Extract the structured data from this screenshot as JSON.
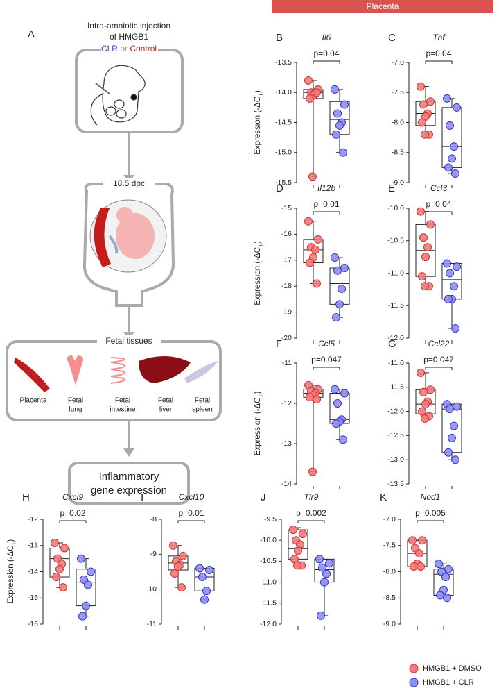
{
  "figure": {
    "banner": "Placenta",
    "panel_a": {
      "label": "A",
      "injection": [
        "Intra-amniotic injection",
        "of HMGB1"
      ],
      "treatment": {
        "clr": "CLR",
        "or": "or",
        "control": "Control"
      },
      "timepoint": "18.5 dpc",
      "tissues_title": "Fetal tissues",
      "tissues": [
        [
          "Placenta"
        ],
        [
          "Fetal",
          "lung"
        ],
        [
          "Fetal",
          "intestine"
        ],
        [
          "Fetal",
          "liver"
        ],
        [
          "Fetal",
          "spleen"
        ]
      ],
      "readout": [
        "Inflammatory",
        "gene expression"
      ]
    }
  },
  "legend": [
    {
      "name": "HMGB1 + DMSO",
      "color": "#f07b7b"
    },
    {
      "name": "HMGB1 + CLR",
      "color": "#8f8ff2"
    }
  ],
  "chart_data": [
    {
      "type": "box",
      "panel": "B",
      "title": "Il6",
      "annotation": "p=0.04",
      "ylabel": [
        "Expression (-ΔC",
        "T",
        ")"
      ],
      "ylim": [
        -15.5,
        -13.5
      ],
      "yticks": [
        -13.5,
        {
          "value": -14,
          "label": "-14.0"
        },
        -14.5,
        {
          "value": -15,
          "label": "-15.0"
        },
        -15.5
      ],
      "series": [
        {
          "values": [
            -13.8,
            -13.95,
            -14.0,
            -14.0,
            -14.05,
            -14.1,
            -14.0,
            -15.4
          ],
          "box": {
            "min": -15.4,
            "q1": -14.1,
            "median": -14.0,
            "q3": -13.95,
            "max": -13.8
          }
        },
        {
          "values": [
            -13.95,
            -14.2,
            -14.35,
            -14.5,
            -14.55,
            -14.7,
            -15.0
          ],
          "box": {
            "min": -15.0,
            "q1": -14.7,
            "median": -14.45,
            "q3": -14.15,
            "max": -13.95
          }
        }
      ]
    },
    {
      "type": "box",
      "panel": "C",
      "title": "Tnf",
      "annotation": "p=0.04",
      "ylim": [
        -9,
        -7
      ],
      "yticks": [
        {
          "value": -7,
          "label": "-7.0"
        },
        -7.5,
        {
          "value": -8,
          "label": "-8.0"
        },
        -8.5,
        {
          "value": -9,
          "label": "-9.0"
        }
      ],
      "series": [
        {
          "values": [
            -7.4,
            -7.65,
            -7.7,
            -7.85,
            -7.9,
            -8.0,
            -8.2,
            -8.2
          ],
          "box": {
            "min": -8.2,
            "q1": -8.05,
            "median": -7.85,
            "q3": -7.65,
            "max": -7.4
          }
        },
        {
          "values": [
            -7.6,
            -7.75,
            -8.05,
            -8.4,
            -8.6,
            -8.75,
            -8.85
          ],
          "box": {
            "min": -8.85,
            "q1": -8.75,
            "median": -8.4,
            "q3": -7.75,
            "max": -7.6
          }
        }
      ]
    },
    {
      "type": "box",
      "panel": "D",
      "title": "Il12b",
      "annotation": "p=0.01",
      "ylabel": [
        "Expression (-ΔC",
        "T",
        ")"
      ],
      "ylim": [
        -20,
        -15
      ],
      "yticks": [
        -15,
        -16,
        -17,
        -18,
        -19,
        -20
      ],
      "series": [
        {
          "values": [
            -15.5,
            -16.2,
            -16.5,
            -16.6,
            -16.9,
            -17.1,
            -17.9
          ],
          "box": {
            "min": -17.9,
            "q1": -17.1,
            "median": -16.6,
            "q3": -16.2,
            "max": -15.5
          }
        },
        {
          "values": [
            -16.9,
            -17.3,
            -17.4,
            -18.1,
            -18.7,
            -19.2
          ],
          "box": {
            "min": -19.2,
            "q1": -18.7,
            "median": -17.9,
            "q3": -17.3,
            "max": -16.9
          }
        }
      ]
    },
    {
      "type": "box",
      "panel": "E",
      "title": "Ccl3",
      "annotation": "p=0.04",
      "ylim": [
        -12,
        -10
      ],
      "yticks": [
        {
          "value": -10,
          "label": "-10.0"
        },
        -10.5,
        {
          "value": -11,
          "label": "-11.0"
        },
        -11.5,
        {
          "value": -12,
          "label": "-12.0"
        }
      ],
      "series": [
        {
          "values": [
            -10.05,
            -10.25,
            -10.45,
            -10.6,
            -10.75,
            -11.05,
            -11.2,
            -11.2
          ],
          "box": {
            "min": -11.2,
            "q1": -11.05,
            "median": -10.65,
            "q3": -10.25,
            "max": -10.05
          }
        },
        {
          "values": [
            -10.85,
            -10.9,
            -11.0,
            -11.2,
            -11.4,
            -11.4,
            -11.85
          ],
          "box": {
            "min": -11.85,
            "q1": -11.4,
            "median": -11.1,
            "q3": -10.85,
            "max": -10.85
          }
        }
      ]
    },
    {
      "type": "box",
      "panel": "F",
      "title": "Ccl5",
      "annotation": "p=0.047",
      "ylabel": [
        "Expression (-ΔC",
        "T",
        ")"
      ],
      "ylim": [
        -14,
        -11
      ],
      "yticks": [
        -11,
        -12,
        -13,
        -14
      ],
      "series": [
        {
          "values": [
            -11.55,
            -11.65,
            -11.7,
            -11.75,
            -11.8,
            -11.85,
            -11.9,
            -13.7
          ],
          "box": {
            "min": -13.7,
            "q1": -11.85,
            "median": -11.75,
            "q3": -11.65,
            "max": -11.55
          }
        },
        {
          "values": [
            -11.65,
            -11.75,
            -12.0,
            -12.4,
            -12.45,
            -12.5,
            -12.9
          ],
          "box": {
            "min": -12.9,
            "q1": -12.5,
            "median": -12.4,
            "q3": -11.75,
            "max": -11.65
          }
        }
      ]
    },
    {
      "type": "box",
      "panel": "G",
      "title": "Ccl22",
      "annotation": "p=0.047",
      "ylim": [
        -13.5,
        -11
      ],
      "yticks": [
        {
          "value": -11,
          "label": "-11.0"
        },
        -11.5,
        {
          "value": -12,
          "label": "-12.0"
        },
        -12.5,
        {
          "value": -13,
          "label": "-13.0"
        },
        -13.5
      ],
      "series": [
        {
          "values": [
            -11.2,
            -11.55,
            -11.6,
            -11.8,
            -11.85,
            -12.0,
            -12.1,
            -12.15
          ],
          "box": {
            "min": -12.15,
            "q1": -12.05,
            "median": -11.85,
            "q3": -11.55,
            "max": -11.2
          }
        },
        {
          "values": [
            -11.85,
            -11.9,
            -11.95,
            -12.3,
            -12.55,
            -12.85,
            -13.0
          ],
          "box": {
            "min": -13.0,
            "q1": -12.85,
            "median": -11.95,
            "q3": -11.85,
            "max": -11.85
          }
        }
      ]
    },
    {
      "type": "box",
      "panel": "H",
      "title": "Cxcl9",
      "annotation": "p=0.02",
      "ylabel": [
        "Expression (-ΔC",
        "T",
        ")"
      ],
      "ylim": [
        -16,
        -12
      ],
      "yticks": [
        -12,
        -13,
        -14,
        -15,
        -16
      ],
      "series": [
        {
          "values": [
            -12.9,
            -13.1,
            -13.5,
            -13.7,
            -13.9,
            -14.2,
            -14.6
          ],
          "box": {
            "min": -14.6,
            "q1": -14.2,
            "median": -13.5,
            "q3": -13.1,
            "max": -12.9
          }
        },
        {
          "values": [
            -13.5,
            -14.0,
            -14.3,
            -14.5,
            -15.3,
            -15.7
          ],
          "box": {
            "min": -15.7,
            "q1": -15.3,
            "median": -14.4,
            "q3": -13.9,
            "max": -13.5
          }
        }
      ]
    },
    {
      "type": "box",
      "panel": "I",
      "title": "Cxcl10",
      "annotation": "p=0.01",
      "ylim": [
        -11,
        -8
      ],
      "yticks": [
        -8,
        -9,
        -10,
        -11
      ],
      "series": [
        {
          "values": [
            -8.75,
            -9.05,
            -9.2,
            -9.3,
            -9.35,
            -9.55,
            -9.95
          ],
          "box": {
            "min": -9.95,
            "q1": -9.45,
            "median": -9.25,
            "q3": -9.05,
            "max": -8.75
          }
        },
        {
          "values": [
            -9.4,
            -9.45,
            -9.65,
            -10.05,
            -10.3
          ],
          "box": {
            "min": -10.3,
            "q1": -10.05,
            "median": -9.65,
            "q3": -9.4,
            "max": -9.4
          }
        }
      ]
    },
    {
      "type": "box",
      "panel": "J",
      "title": "Tlr9",
      "annotation": "p=0.002",
      "ylim": [
        -12,
        -9.5
      ],
      "yticks": [
        -9.5,
        {
          "value": -10,
          "label": "-10.0"
        },
        -10.5,
        {
          "value": -11,
          "label": "-11.0"
        },
        -11.5,
        {
          "value": -12,
          "label": "-12.0"
        }
      ],
      "series": [
        {
          "values": [
            -9.75,
            -9.85,
            -10.0,
            -10.1,
            -10.25,
            -10.45,
            -10.6,
            -10.6
          ],
          "box": {
            "min": -10.6,
            "q1": -10.45,
            "median": -10.2,
            "q3": -9.75,
            "max": -9.7
          }
        },
        {
          "values": [
            -10.45,
            -10.55,
            -10.65,
            -10.8,
            -11.0,
            -11.8
          ],
          "box": {
            "min": -11.8,
            "q1": -11.0,
            "median": -10.7,
            "q3": -10.45,
            "max": -10.45
          }
        }
      ]
    },
    {
      "type": "box",
      "panel": "K",
      "title": "Nod1",
      "annotation": "p=0.005",
      "ylim": [
        -9,
        -7
      ],
      "yticks": [
        {
          "value": -7,
          "label": "-7.0"
        },
        -7.5,
        {
          "value": -8,
          "label": "-8.0"
        },
        -8.5,
        {
          "value": -9,
          "label": "-9.0"
        }
      ],
      "series": [
        {
          "values": [
            -7.4,
            -7.4,
            -7.55,
            -7.65,
            -7.85,
            -7.9,
            -7.9
          ],
          "box": {
            "min": -7.9,
            "q1": -7.9,
            "median": -7.65,
            "q3": -7.4,
            "max": -7.4
          }
        },
        {
          "values": [
            -7.85,
            -7.95,
            -8.0,
            -8.1,
            -8.35,
            -8.45,
            -8.5
          ],
          "box": {
            "min": -8.5,
            "q1": -8.45,
            "median": -8.05,
            "q3": -7.95,
            "max": -7.85
          }
        }
      ]
    }
  ]
}
